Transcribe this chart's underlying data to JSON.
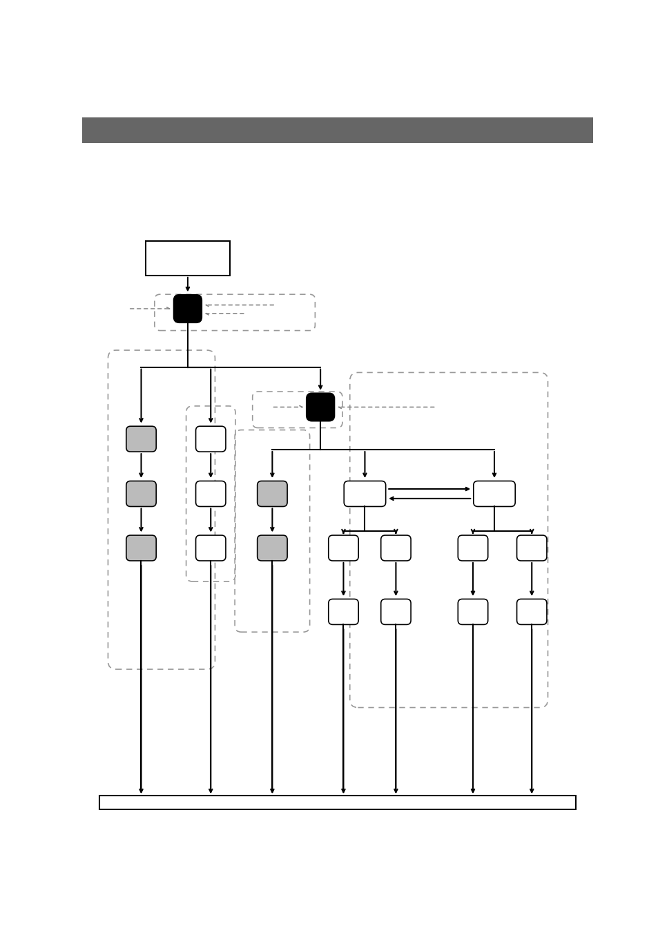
{
  "bg_color": "#ffffff",
  "header_color": "#666666",
  "footer_color": "#ffffff",
  "arrow_color": "#000000",
  "dotted_arrow_color": "#888888",
  "gray_box_color": "#bbbbbb",
  "white_box_color": "#ffffff",
  "black_box_color": "#000000",
  "dashed_border_color": "#999999"
}
